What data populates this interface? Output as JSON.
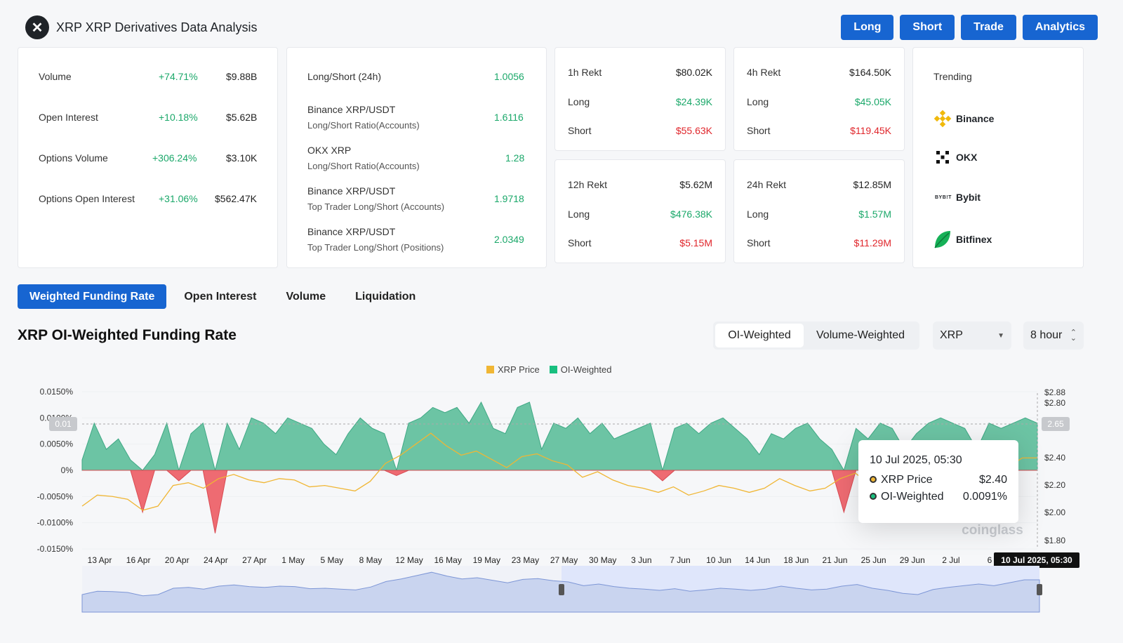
{
  "header": {
    "title": "XRP XRP Derivatives Data Analysis",
    "logo": "x-logo"
  },
  "actions": [
    "Long",
    "Short",
    "Trade",
    "Analytics"
  ],
  "stats": [
    {
      "label": "Volume",
      "change": "+74.71%",
      "value": "$9.88B"
    },
    {
      "label": "Open Interest",
      "change": "+10.18%",
      "value": "$5.62B"
    },
    {
      "label": "Options Volume",
      "change": "+306.24%",
      "value": "$3.10K"
    },
    {
      "label": "Options Open Interest",
      "change": "+31.06%",
      "value": "$562.47K"
    }
  ],
  "ratios": [
    {
      "label": "Long/Short (24h)",
      "sub": "",
      "value": "1.0056"
    },
    {
      "label": "Binance XRP/USDT",
      "sub": "Long/Short Ratio(Accounts)",
      "value": "1.6116"
    },
    {
      "label": "OKX XRP",
      "sub": "Long/Short Ratio(Accounts)",
      "value": "1.28"
    },
    {
      "label": "Binance XRP/USDT",
      "sub": "Top Trader Long/Short (Accounts)",
      "value": "1.9718"
    },
    {
      "label": "Binance XRP/USDT",
      "sub": "Top Trader Long/Short (Positions)",
      "value": "2.0349"
    }
  ],
  "rekt": [
    {
      "title": "1h Rekt",
      "total": "$80.02K",
      "long": "$24.39K",
      "short": "$55.63K"
    },
    {
      "title": "4h Rekt",
      "total": "$164.50K",
      "long": "$45.05K",
      "short": "$119.45K"
    },
    {
      "title": "12h Rekt",
      "total": "$5.62M",
      "long": "$476.38K",
      "short": "$5.15M"
    },
    {
      "title": "24h Rekt",
      "total": "$12.85M",
      "long": "$1.57M",
      "short": "$11.29M"
    }
  ],
  "rekt_labels": {
    "long": "Long",
    "short": "Short"
  },
  "trending": {
    "title": "Trending",
    "items": [
      "Binance",
      "OKX",
      "Bybit",
      "Bitfinex"
    ]
  },
  "tabs": [
    "Weighted Funding Rate",
    "Open Interest",
    "Volume",
    "Liquidation"
  ],
  "chart_header": {
    "title": "XRP OI-Weighted Funding Rate",
    "seg_on": "OI-Weighted",
    "seg_off": "Volume-Weighted",
    "coin": "XRP",
    "interval": "8 hour"
  },
  "tooltip": {
    "time": "10 Jul 2025, 05:30",
    "price_label": "XRP Price",
    "price": "$2.40",
    "rate_label": "OI-Weighted",
    "rate": "0.0091%"
  },
  "crosshair": {
    "left_value": "0.01",
    "right_value": "2.65",
    "x_label": "10 Jul 2025, 05:30"
  },
  "watermark": "coinglass",
  "colors": {
    "accent": "#1765d1",
    "oi_fill": "#5cbd9b",
    "negative": "#e9545f",
    "price_line": "#f0b634"
  },
  "chart_data": {
    "type": "area",
    "legend": [
      "XRP Price",
      "OI-Weighted"
    ],
    "x_ticks": [
      "13 Apr",
      "16 Apr",
      "20 Apr",
      "24 Apr",
      "27 Apr",
      "1 May",
      "5 May",
      "8 May",
      "12 May",
      "16 May",
      "19 May",
      "23 May",
      "27 May",
      "30 May",
      "3 Jun",
      "7 Jun",
      "10 Jun",
      "14 Jun",
      "18 Jun",
      "21 Jun",
      "25 Jun",
      "29 Jun",
      "2 Jul",
      "6"
    ],
    "y_left_ticks": [
      "0.0150%",
      "0.0100%",
      "0.0050%",
      "0%",
      "-0.0050%",
      "-0.0100%",
      "-0.0150%"
    ],
    "y_right_ticks": [
      "$2.88",
      "$2.80",
      "$2.40",
      "$2.20",
      "$2.00",
      "$1.80"
    ],
    "y_left_range": [
      -0.015,
      0.015
    ],
    "y_right_range": [
      1.8,
      2.88
    ],
    "series": [
      {
        "name": "OI-Weighted",
        "unit": "%",
        "values": [
          0.002,
          0.009,
          0.004,
          0.006,
          0.002,
          -0.008,
          0.003,
          0.009,
          -0.002,
          0.007,
          0.009,
          -0.012,
          0.009,
          0.004,
          0.01,
          0.009,
          0.007,
          0.01,
          0.009,
          0.008,
          0.005,
          0.003,
          0.007,
          0.01,
          0.008,
          0.007,
          -0.001,
          0.009,
          0.01,
          0.012,
          0.011,
          0.012,
          0.009,
          0.013,
          0.008,
          0.007,
          0.012,
          0.013,
          0.004,
          0.009,
          0.008,
          0.01,
          0.007,
          0.009,
          0.006,
          0.007,
          0.008,
          0.009,
          -0.002,
          0.008,
          0.009,
          0.007,
          0.009,
          0.01,
          0.008,
          0.006,
          0.003,
          0.007,
          0.006,
          0.008,
          0.009,
          0.006,
          0.004,
          -0.008,
          0.008,
          0.006,
          0.009,
          0.008,
          0.004,
          0.007,
          0.009,
          0.01,
          0.009,
          0.008,
          0.004,
          0.009,
          0.008,
          0.009,
          0.01,
          0.009
        ],
        "note": ""
      },
      {
        "name": "XRP Price",
        "unit": "$",
        "values": [
          2.05,
          2.13,
          2.12,
          2.1,
          2.02,
          2.05,
          2.2,
          2.22,
          2.18,
          2.25,
          2.28,
          2.24,
          2.22,
          2.25,
          2.24,
          2.19,
          2.2,
          2.18,
          2.16,
          2.23,
          2.36,
          2.42,
          2.5,
          2.58,
          2.49,
          2.42,
          2.45,
          2.39,
          2.33,
          2.41,
          2.43,
          2.38,
          2.35,
          2.26,
          2.3,
          2.24,
          2.2,
          2.18,
          2.15,
          2.19,
          2.13,
          2.16,
          2.2,
          2.18,
          2.15,
          2.18,
          2.25,
          2.2,
          2.16,
          2.18,
          2.25,
          2.29,
          2.2,
          2.15,
          2.08,
          2.05,
          2.17,
          2.22,
          2.26,
          2.3,
          2.26,
          2.33,
          2.4,
          2.4
        ]
      }
    ]
  }
}
